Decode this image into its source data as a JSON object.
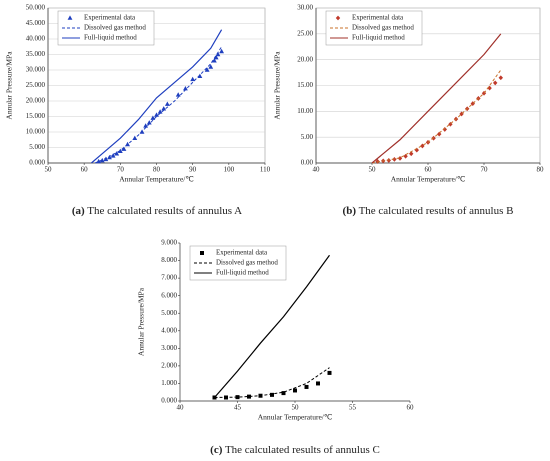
{
  "chart_data": [
    {
      "type": "line",
      "caption_label": "(a)",
      "caption": "The calculated results of annulus A",
      "x_label": "Annular Temperature/℃",
      "y_label": "Annular Pressure/MPa",
      "grid": true,
      "legend": "upper left",
      "xlim": [
        50,
        110
      ],
      "xticks": [
        50,
        60,
        70,
        80,
        90,
        100,
        110
      ],
      "ylim": [
        0,
        50
      ],
      "yticks": [
        {
          "value": 0,
          "label": "0.000"
        },
        {
          "value": 5,
          "label": "5.000"
        },
        {
          "value": 10,
          "label": "10.000"
        },
        {
          "value": 15,
          "label": "15.000"
        },
        {
          "value": 20,
          "label": "20.000"
        },
        {
          "value": 25,
          "label": "25.000"
        },
        {
          "value": 30,
          "label": "30.000"
        },
        {
          "value": 35,
          "label": "35.000"
        },
        {
          "value": 40,
          "label": "40.000"
        },
        {
          "value": 45,
          "label": "45.000"
        },
        {
          "value": 50,
          "label": "50.000"
        }
      ],
      "series": [
        {
          "name": "Experimental data",
          "kind": "scatter",
          "marker": "triangle",
          "color": "#1f3fbf",
          "x": [
            64,
            65,
            66,
            67,
            68,
            69,
            70,
            71,
            72,
            74,
            76,
            77,
            78,
            79,
            80,
            81,
            82,
            83,
            86,
            88,
            90,
            92,
            94,
            95,
            96,
            96.5,
            97,
            98
          ],
          "values": [
            0.5,
            0.8,
            1.2,
            1.8,
            2.3,
            3,
            3.8,
            4.5,
            6,
            8,
            10,
            12,
            13,
            14.5,
            15.5,
            16.5,
            17.5,
            19,
            22,
            24,
            27,
            28,
            30,
            31,
            33,
            34,
            35,
            36
          ]
        },
        {
          "name": "Dissolved gas method",
          "kind": "dashed",
          "color": "#1f3fbf",
          "x": [
            63,
            66,
            70,
            75,
            80,
            85,
            90,
            95,
            98
          ],
          "values": [
            0,
            1.5,
            4,
            9,
            15,
            20,
            26,
            32,
            37.5
          ]
        },
        {
          "name": "Full-liquid method",
          "kind": "solid",
          "color": "#1f3fbf",
          "x": [
            62,
            65,
            70,
            75,
            80,
            85,
            90,
            95,
            98
          ],
          "values": [
            0,
            3,
            8,
            14,
            21,
            26,
            31,
            37,
            43
          ]
        }
      ]
    },
    {
      "type": "line",
      "caption_label": "(b)",
      "caption": "The calculated results of annulus B",
      "x_label": "Annular Temperature/℃",
      "y_label": "Annular Pressure/MPa",
      "grid": true,
      "legend": "upper left",
      "xlim": [
        40,
        80
      ],
      "xticks": [
        40,
        50,
        60,
        70,
        80
      ],
      "ylim": [
        0,
        30
      ],
      "yticks": [
        {
          "value": 0,
          "label": "0.00"
        },
        {
          "value": 5,
          "label": "5.00"
        },
        {
          "value": 10,
          "label": "10.00"
        },
        {
          "value": 15,
          "label": "15.00"
        },
        {
          "value": 20,
          "label": "20.00"
        },
        {
          "value": 25,
          "label": "25.00"
        },
        {
          "value": 30,
          "label": "30.00"
        }
      ],
      "series": [
        {
          "name": "Experimental data",
          "kind": "scatter",
          "marker": "diamond",
          "color": "#c0392b",
          "x": [
            51,
            52,
            53,
            54,
            55,
            56,
            57,
            58,
            59,
            60,
            61,
            62,
            63,
            64,
            65,
            66,
            67,
            68,
            69,
            70,
            71,
            72,
            73
          ],
          "values": [
            0.3,
            0.4,
            0.5,
            0.7,
            0.9,
            1.3,
            1.8,
            2.5,
            3.3,
            4,
            4.8,
            5.6,
            6.5,
            7.5,
            8.5,
            9.5,
            10.5,
            11.5,
            12.5,
            13.5,
            14.5,
            15.5,
            16.5
          ]
        },
        {
          "name": "Dissolved gas method",
          "kind": "dashed",
          "color": "#c8702a",
          "x": [
            50,
            55,
            60,
            65,
            70,
            73
          ],
          "values": [
            0,
            1,
            4,
            8.5,
            13.5,
            18
          ]
        },
        {
          "name": "Full-liquid method",
          "kind": "solid",
          "color": "#a0302a",
          "x": [
            50,
            55,
            60,
            65,
            70,
            73
          ],
          "values": [
            0,
            4.5,
            10,
            15.5,
            21,
            25
          ]
        }
      ]
    },
    {
      "type": "line",
      "caption_label": "(c)",
      "caption": "The calculated results of annulus C",
      "x_label": "Annular Temperature/℃",
      "y_label": "Annular Pressure/MPa",
      "grid": false,
      "legend": "upper left",
      "xlim": [
        40,
        60
      ],
      "xticks": [
        40,
        45,
        50,
        55,
        60
      ],
      "ylim": [
        0,
        9
      ],
      "yticks": [
        {
          "value": 0,
          "label": "0.000"
        },
        {
          "value": 1,
          "label": "1.000"
        },
        {
          "value": 2,
          "label": "2.000"
        },
        {
          "value": 3,
          "label": "3.000"
        },
        {
          "value": 4,
          "label": "4.000"
        },
        {
          "value": 5,
          "label": "5.000"
        },
        {
          "value": 6,
          "label": "6.000"
        },
        {
          "value": 7,
          "label": "7.000"
        },
        {
          "value": 8,
          "label": "8.000"
        },
        {
          "value": 9,
          "label": "9.000"
        }
      ],
      "series": [
        {
          "name": "Experimental data",
          "kind": "scatter",
          "marker": "square",
          "color": "#000000",
          "x": [
            43,
            44,
            45,
            46,
            47,
            48,
            49,
            50,
            51,
            52,
            53
          ],
          "values": [
            0.2,
            0.2,
            0.22,
            0.25,
            0.3,
            0.35,
            0.45,
            0.6,
            0.8,
            1.0,
            1.6
          ]
        },
        {
          "name": "Dissolved gas method",
          "kind": "dashed",
          "color": "#000000",
          "x": [
            43,
            45,
            47,
            49,
            51,
            53
          ],
          "values": [
            0.2,
            0.22,
            0.3,
            0.5,
            1.0,
            1.9
          ]
        },
        {
          "name": "Full-liquid method",
          "kind": "solid",
          "color": "#000000",
          "x": [
            43,
            45,
            47,
            49,
            51,
            53
          ],
          "values": [
            0.2,
            1.7,
            3.3,
            4.8,
            6.5,
            8.3
          ]
        }
      ]
    }
  ]
}
